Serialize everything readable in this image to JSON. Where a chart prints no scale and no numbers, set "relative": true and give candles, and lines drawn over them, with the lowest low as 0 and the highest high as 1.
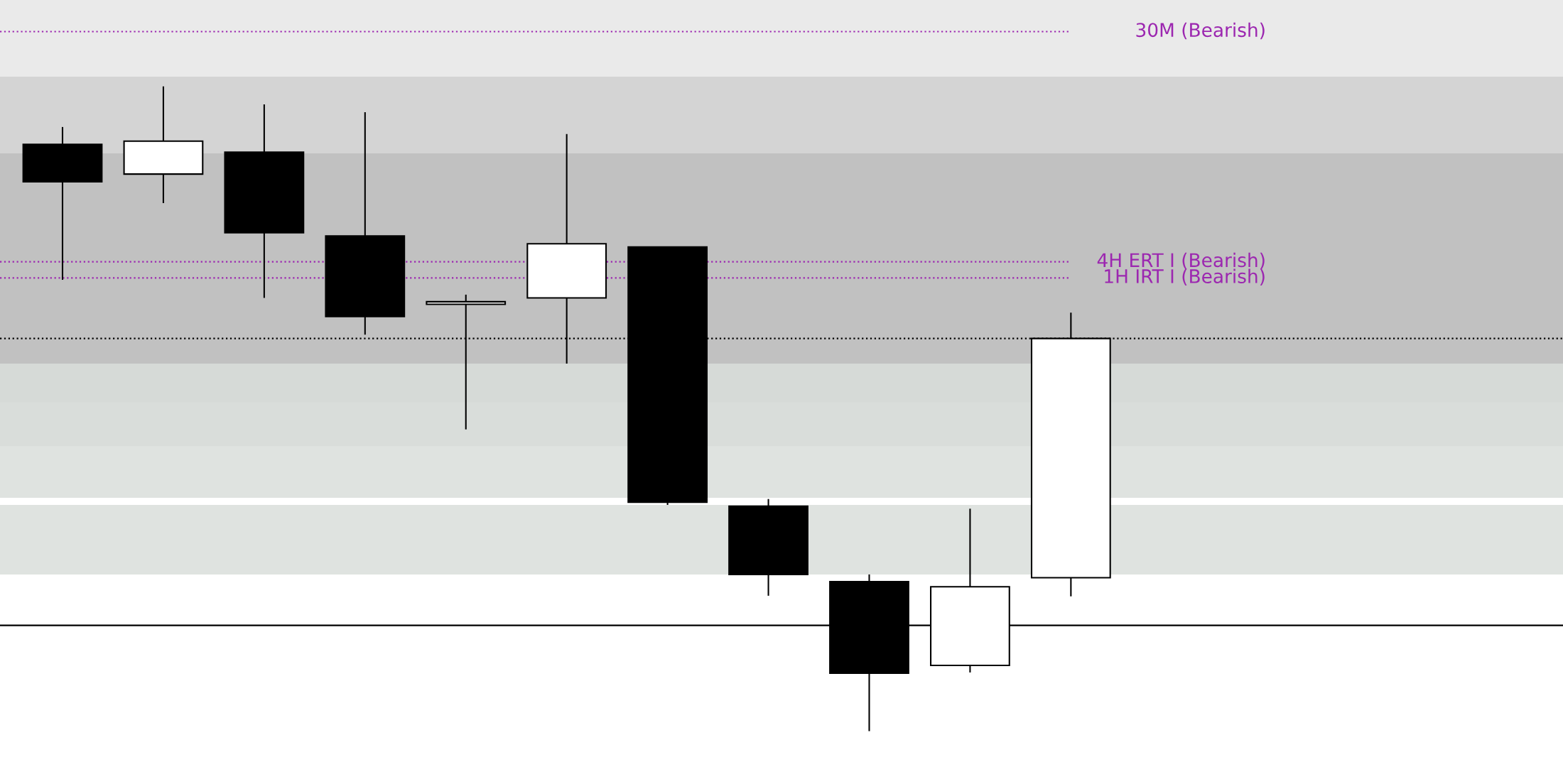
{
  "chart_data": {
    "type": "candlestick",
    "relative": true,
    "categories": [
      null,
      null,
      null,
      null,
      null,
      null,
      null,
      null,
      null,
      null,
      null
    ],
    "ohlc": [
      [
        0.91,
        0.937,
        0.7,
        0.852
      ],
      [
        0.864,
        1.0,
        0.819,
        0.915
      ],
      [
        0.898,
        0.972,
        0.672,
        0.773
      ],
      [
        0.768,
        0.96,
        0.615,
        0.643
      ],
      [
        0.662,
        0.677,
        0.468,
        0.666
      ],
      [
        0.672,
        0.926,
        0.57,
        0.756
      ],
      [
        0.751,
        0.751,
        0.351,
        0.355
      ],
      [
        0.349,
        0.36,
        0.21,
        0.243
      ],
      [
        0.232,
        0.243,
        0.0,
        0.09
      ],
      [
        0.102,
        0.345,
        0.091,
        0.224
      ],
      [
        0.238,
        0.649,
        0.209,
        0.609
      ]
    ],
    "bands": [
      {
        "axis": "y",
        "from": 0.555,
        "to": 1.134,
        "color": "#e6e6e6"
      },
      {
        "axis": "y",
        "from": 0.442,
        "to": 1.015,
        "color": "#d0d0d0"
      },
      {
        "axis": "y",
        "from": 0.51,
        "to": 0.896,
        "color": "#bdbdbd"
      },
      {
        "axis": "y",
        "from": 0.362,
        "to": 0.57,
        "color": "#d9dedb"
      },
      {
        "axis": "y",
        "from": 0.243,
        "to": 0.351,
        "color": "#d9dedb"
      }
    ],
    "ref_lines": [
      {
        "axis": "y",
        "value": 1.085,
        "label": "30M (Bearish)",
        "color": "#9c27b0",
        "line_style": "dotted"
      },
      {
        "axis": "y",
        "value": 0.728,
        "label": "4H ERT I (Bearish)",
        "color": "#9c27b0",
        "line_style": "dotted"
      },
      {
        "axis": "y",
        "value": 0.703,
        "label": "1H IRT I (Bearish)",
        "color": "#9c27b0",
        "line_style": "dotted"
      },
      {
        "axis": "y",
        "value": 0.609,
        "color": "#000000",
        "line_style": "dotted"
      },
      {
        "axis": "y",
        "value": 0.164,
        "color": "#000000",
        "line_style": "solid"
      }
    ]
  }
}
